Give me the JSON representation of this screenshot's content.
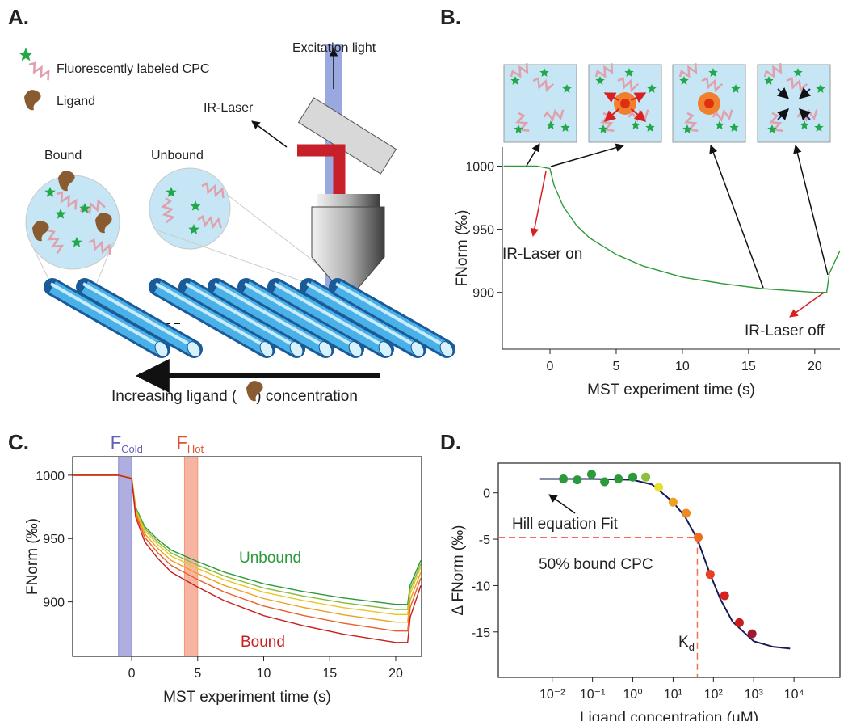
{
  "panel_labels": [
    "A.",
    "B.",
    "C.",
    "D."
  ],
  "diagram": {
    "legend_cpc": "Fluorescently labeled CPC",
    "legend_ligand": "Ligand",
    "excitation": "Excitation light",
    "ir_laser": "IR-Laser",
    "bound": "Bound",
    "unbound": "Unbound",
    "arrow_text_before": "Increasing ligand (",
    "arrow_text_after": ") concentration"
  },
  "chart_data": [
    {
      "type": "line",
      "xlabel": "MST experiment time (s)",
      "ylabel": "FNorm (‰)",
      "x": [
        -3.5,
        -1,
        0,
        0.3,
        1,
        2,
        3,
        5,
        7,
        10,
        13,
        16,
        20,
        20.9,
        21.1,
        21.9
      ],
      "values": [
        1000,
        1000,
        998,
        985,
        968,
        953,
        943,
        930,
        921,
        912,
        907,
        903,
        900,
        900,
        915,
        933
      ],
      "color": "#2e9a3c",
      "xlim": [
        -3.6,
        21.9
      ],
      "ylim": [
        855,
        1015
      ],
      "xticks": [
        0,
        5,
        10,
        15,
        20
      ],
      "yticks": [
        900,
        950,
        1000
      ],
      "annotations": [
        "IR-Laser on",
        "IR-Laser off"
      ]
    },
    {
      "type": "line",
      "xlabel": "MST experiment time (s)",
      "ylabel": "FNorm (‰)",
      "x": [
        -4.4,
        -1,
        0,
        0.3,
        1,
        2,
        3,
        5,
        7,
        10,
        13,
        16,
        20,
        20.9,
        21.1,
        21.9
      ],
      "series": [
        {
          "color": "#2a9a3a",
          "values": [
            1000,
            1000,
            998,
            974.5,
            959.2,
            949,
            940.8,
            931.7,
            923.5,
            914.3,
            908.2,
            903.1,
            898,
            898,
            913.3,
            932.7
          ]
        },
        {
          "color": "#8ab83a",
          "values": [
            1000,
            1000,
            997.9,
            973.5,
            957.6,
            947,
            938.5,
            929,
            920.5,
            911,
            904.6,
            899.3,
            894,
            894,
            909.9,
            930
          ]
        },
        {
          "color": "#e6c81e",
          "values": [
            1000,
            1000,
            997.8,
            972.5,
            956,
            945,
            936.2,
            926.3,
            917.5,
            907.6,
            901,
            895.5,
            890,
            890,
            906.5,
            927.4
          ]
        },
        {
          "color": "#f0a020",
          "values": [
            1000,
            1000,
            997.7,
            971,
            953.6,
            942,
            932.7,
            922.3,
            913,
            902.6,
            895.6,
            889.8,
            884,
            884,
            901.4,
            923.4
          ]
        },
        {
          "color": "#e8602a",
          "values": [
            1000,
            1000,
            997.5,
            969.3,
            950.8,
            938.5,
            928.7,
            917.6,
            907.8,
            896.7,
            889.3,
            883.2,
            877,
            877,
            895.5,
            918.8
          ]
        },
        {
          "color": "#c81e1e",
          "values": [
            1000,
            1000,
            997.4,
            967,
            947.2,
            934,
            923.4,
            911.6,
            901,
            889.1,
            881.2,
            874.6,
            868,
            868,
            887.8,
            912.9
          ]
        }
      ],
      "bands": [
        {
          "label": "F",
          "sub": "Cold",
          "range": [
            -1,
            0
          ],
          "color": "#8c8cd4"
        },
        {
          "label": "F",
          "sub": "Hot",
          "range": [
            4,
            5
          ],
          "color": "#f2957a"
        }
      ],
      "xlim": [
        -4.47,
        21.96
      ],
      "ylim": [
        857,
        1014.6
      ],
      "xticks": [
        0,
        5,
        10,
        15,
        20
      ],
      "yticks": [
        900,
        950,
        1000
      ],
      "annotations": [
        "Unbound",
        "Bound"
      ]
    },
    {
      "type": "scatter",
      "xlabel": "Ligand concentration (µM)",
      "ylabel": "Δ FNorm (‰)",
      "xlog": true,
      "x": [
        0.019,
        0.042,
        0.095,
        0.2,
        0.44,
        1,
        2.1,
        4.4,
        10,
        21,
        42,
        83,
        190,
        440,
        910
      ],
      "values": [
        1.5,
        1.4,
        2.0,
        1.2,
        1.5,
        1.7,
        1.7,
        0.6,
        -1.0,
        -2.2,
        -4.8,
        -8.8,
        -11.1,
        -14.0,
        -15.2
      ],
      "colors": [
        "#2a9a3a",
        "#2a9a3a",
        "#2a9a3a",
        "#2a9a3a",
        "#2a9a3a",
        "#2a9a3a",
        "#8cc040",
        "#e8e030",
        "#f0a020",
        "#f08a20",
        "#f06a20",
        "#e84020",
        "#d82020",
        "#c81e1e",
        "#a01830"
      ],
      "fit": {
        "color": "#1a1a5a",
        "x": [
          0.005,
          0.1,
          1,
          3,
          10,
          20,
          40,
          80,
          150,
          300,
          1000,
          3000,
          8000
        ],
        "values": [
          1.5,
          1.5,
          1.4,
          0.9,
          -1.0,
          -2.6,
          -5.0,
          -8.6,
          -11.5,
          -13.9,
          -16.0,
          -16.6,
          -16.8
        ]
      },
      "reference": {
        "x": 40,
        "y": -4.8,
        "color": "#f07050"
      },
      "xlim": [
        0.00046,
        138000
      ],
      "ylim": [
        -19.9,
        3.2
      ],
      "xticks": [
        {
          "value": 0.01,
          "label": "10⁻²"
        },
        {
          "value": 0.1,
          "label": "10⁻¹"
        },
        {
          "value": 1,
          "label": "10⁰"
        },
        {
          "value": 10,
          "label": "10¹"
        },
        {
          "value": 100,
          "label": "10²"
        },
        {
          "value": 1000,
          "label": "10³"
        },
        {
          "value": 10000,
          "label": "10⁴"
        }
      ],
      "yticks": [
        0,
        -5,
        -10,
        -15
      ],
      "annotations": [
        "Hill equation Fit",
        "50% bound CPC"
      ],
      "kd_label": [
        "K",
        "d"
      ]
    }
  ]
}
